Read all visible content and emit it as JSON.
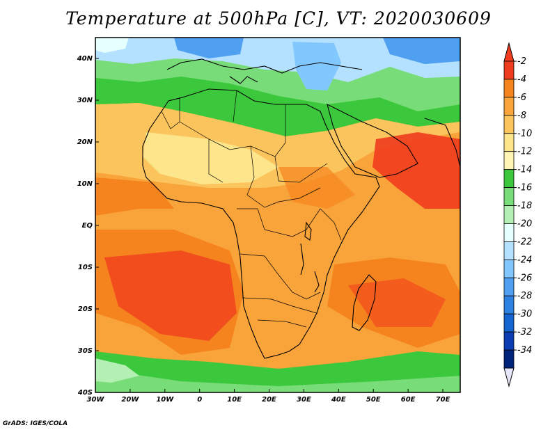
{
  "title": "Temperature at 500hPa [C], VT: 2020030609",
  "credit": "GrADS: IGES/COLA",
  "map": {
    "lon_range": [
      -30,
      75
    ],
    "lat_range": [
      -40,
      45
    ],
    "x_ticks": [
      "30W",
      "20W",
      "10W",
      "0",
      "10E",
      "20E",
      "30E",
      "40E",
      "50E",
      "60E",
      "70E"
    ],
    "y_ticks": [
      "40N",
      "30N",
      "20N",
      "10N",
      "EQ",
      "10S",
      "20S",
      "30S",
      "40S"
    ]
  },
  "colorbar": {
    "levels": [
      "-2",
      "-4",
      "-6",
      "-8",
      "-10",
      "-12",
      "-14",
      "-16",
      "-18",
      "-20",
      "-22",
      "-24",
      "-26",
      "-28",
      "-30",
      "-32",
      "-34"
    ],
    "colors": [
      "#f03c1e",
      "#f6841e",
      "#f9a43a",
      "#fbc45c",
      "#fde58c",
      "#fff5b4",
      "#3cc83c",
      "#78dc78",
      "#b4f0b4",
      "#e6ffff",
      "#b4e1ff",
      "#82c8ff",
      "#4fa0f0",
      "#2d82e1",
      "#1464d2",
      "#0a3cb4",
      "#00237a"
    ],
    "top_arrow_color": "#f03c1e",
    "bottom_arrow_color": "#e6e6fa"
  }
}
